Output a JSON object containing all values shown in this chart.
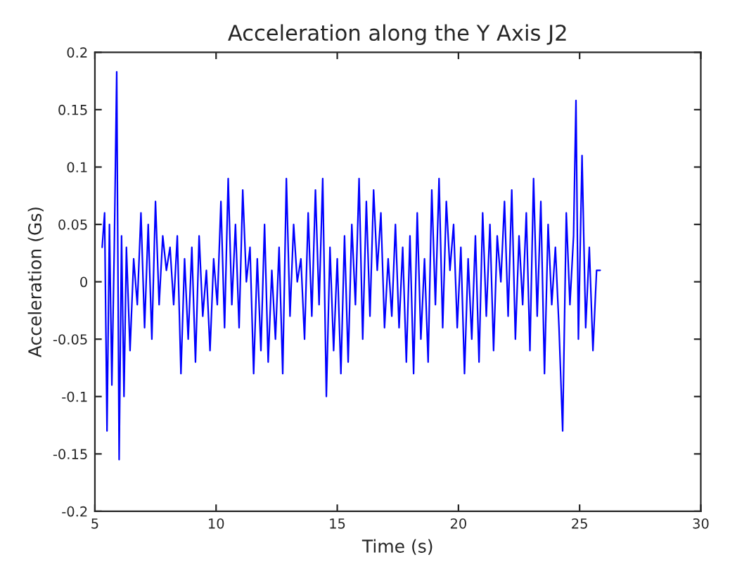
{
  "chart_data": {
    "type": "line",
    "title": "Acceleration along the Y Axis J2",
    "xlabel": "Time (s)",
    "ylabel": "Acceleration (Gs)",
    "x": [
      5.3,
      5.4,
      5.5,
      5.6,
      5.7,
      5.8,
      5.9,
      6.0,
      6.1,
      6.2,
      6.3,
      6.45,
      6.6,
      6.75,
      6.9,
      7.05,
      7.2,
      7.35,
      7.5,
      7.65,
      7.8,
      7.95,
      8.1,
      8.25,
      8.4,
      8.55,
      8.7,
      8.85,
      9.0,
      9.15,
      9.3,
      9.45,
      9.6,
      9.75,
      9.9,
      10.05,
      10.2,
      10.35,
      10.5,
      10.65,
      10.8,
      10.95,
      11.1,
      11.25,
      11.4,
      11.55,
      11.7,
      11.85,
      12.0,
      12.15,
      12.3,
      12.45,
      12.6,
      12.75,
      12.9,
      13.05,
      13.2,
      13.35,
      13.5,
      13.65,
      13.8,
      13.95,
      14.1,
      14.25,
      14.4,
      14.55,
      14.7,
      14.85,
      15.0,
      15.15,
      15.3,
      15.45,
      15.6,
      15.75,
      15.9,
      16.05,
      16.2,
      16.35,
      16.5,
      16.65,
      16.8,
      16.95,
      17.1,
      17.25,
      17.4,
      17.55,
      17.7,
      17.85,
      18.0,
      18.15,
      18.3,
      18.45,
      18.6,
      18.75,
      18.9,
      19.05,
      19.2,
      19.35,
      19.5,
      19.65,
      19.8,
      19.95,
      20.1,
      20.25,
      20.4,
      20.55,
      20.7,
      20.85,
      21.0,
      21.15,
      21.3,
      21.45,
      21.6,
      21.75,
      21.9,
      22.05,
      22.2,
      22.35,
      22.5,
      22.65,
      22.8,
      22.95,
      23.1,
      23.25,
      23.4,
      23.55,
      23.7,
      23.85,
      24.0,
      24.15,
      24.3,
      24.45,
      24.6,
      24.75,
      24.85,
      24.95,
      25.1,
      25.25,
      25.4,
      25.55,
      25.7,
      25.85
    ],
    "series": [
      {
        "color": "#0000ff",
        "values": [
          0.03,
          0.06,
          -0.13,
          0.05,
          -0.09,
          0.03,
          0.183,
          -0.155,
          0.04,
          -0.1,
          0.03,
          -0.06,
          0.02,
          -0.02,
          0.06,
          -0.04,
          0.05,
          -0.05,
          0.07,
          -0.02,
          0.04,
          0.01,
          0.03,
          -0.02,
          0.04,
          -0.08,
          0.02,
          -0.05,
          0.03,
          -0.07,
          0.04,
          -0.03,
          0.01,
          -0.06,
          0.02,
          -0.02,
          0.07,
          -0.04,
          0.09,
          -0.02,
          0.05,
          -0.04,
          0.08,
          0.0,
          0.03,
          -0.08,
          0.02,
          -0.06,
          0.05,
          -0.07,
          0.01,
          -0.05,
          0.03,
          -0.08,
          0.09,
          -0.03,
          0.05,
          0.0,
          0.02,
          -0.05,
          0.06,
          -0.03,
          0.08,
          -0.02,
          0.09,
          -0.1,
          0.03,
          -0.06,
          0.02,
          -0.08,
          0.04,
          -0.07,
          0.05,
          -0.02,
          0.09,
          -0.05,
          0.07,
          -0.03,
          0.08,
          0.01,
          0.06,
          -0.04,
          0.02,
          -0.03,
          0.05,
          -0.04,
          0.03,
          -0.07,
          0.04,
          -0.08,
          0.06,
          -0.05,
          0.02,
          -0.07,
          0.08,
          -0.02,
          0.09,
          -0.04,
          0.07,
          0.01,
          0.05,
          -0.04,
          0.03,
          -0.08,
          0.02,
          -0.05,
          0.04,
          -0.07,
          0.06,
          -0.03,
          0.05,
          -0.06,
          0.04,
          0.0,
          0.07,
          -0.03,
          0.08,
          -0.05,
          0.04,
          -0.02,
          0.06,
          -0.06,
          0.09,
          -0.03,
          0.07,
          -0.08,
          0.05,
          -0.02,
          0.03,
          -0.04,
          -0.13,
          0.06,
          -0.02,
          0.04,
          0.158,
          -0.05,
          0.11,
          -0.04,
          0.03,
          -0.06,
          0.01,
          0.01
        ]
      }
    ],
    "xlim": [
      5,
      30
    ],
    "ylim": [
      -0.2,
      0.2
    ],
    "xticks": [
      5,
      10,
      15,
      20,
      25,
      30
    ],
    "yticks": [
      -0.2,
      -0.15,
      -0.1,
      -0.05,
      0,
      0.05,
      0.1,
      0.15,
      0.2
    ],
    "grid": false,
    "legend": false,
    "line_style": "solid",
    "marker": "none"
  }
}
